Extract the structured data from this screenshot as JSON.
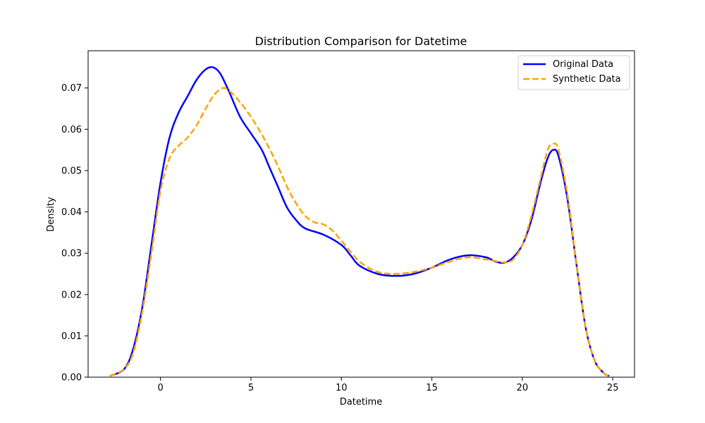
{
  "chart_data": {
    "type": "line",
    "title": "Distribution Comparison for Datetime",
    "xlabel": "Datetime",
    "ylabel": "Density",
    "xlim": [
      -4,
      26.2
    ],
    "ylim": [
      0,
      0.079
    ],
    "xticks": [
      0,
      5,
      10,
      15,
      20,
      25
    ],
    "yticks": [
      0.0,
      0.01,
      0.02,
      0.03,
      0.04,
      0.05,
      0.06,
      0.07
    ],
    "ytick_labels": [
      "0.00",
      "0.01",
      "0.02",
      "0.03",
      "0.04",
      "0.05",
      "0.06",
      "0.07"
    ],
    "grid": false,
    "legend_position": "top-right",
    "series": [
      {
        "name": "Original Data",
        "color": "#0000ff",
        "style": "solid",
        "points": [
          [
            -2.8,
            0.0003
          ],
          [
            -2.0,
            0.002
          ],
          [
            -1.5,
            0.007
          ],
          [
            -1.0,
            0.017
          ],
          [
            -0.5,
            0.032
          ],
          [
            0.0,
            0.047
          ],
          [
            0.5,
            0.058
          ],
          [
            1.0,
            0.064
          ],
          [
            1.5,
            0.068
          ],
          [
            2.0,
            0.072
          ],
          [
            2.5,
            0.0745
          ],
          [
            2.9,
            0.075
          ],
          [
            3.3,
            0.0735
          ],
          [
            3.8,
            0.069
          ],
          [
            4.4,
            0.063
          ],
          [
            5.0,
            0.059
          ],
          [
            5.6,
            0.055
          ],
          [
            6.0,
            0.051
          ],
          [
            6.5,
            0.046
          ],
          [
            7.0,
            0.041
          ],
          [
            7.5,
            0.038
          ],
          [
            8.0,
            0.036
          ],
          [
            9.0,
            0.0345
          ],
          [
            10.0,
            0.032
          ],
          [
            10.5,
            0.0295
          ],
          [
            11.0,
            0.027
          ],
          [
            12.0,
            0.025
          ],
          [
            13.0,
            0.0245
          ],
          [
            14.0,
            0.025
          ],
          [
            15.0,
            0.0265
          ],
          [
            16.0,
            0.0285
          ],
          [
            17.0,
            0.0295
          ],
          [
            18.0,
            0.029
          ],
          [
            18.5,
            0.028
          ],
          [
            19.0,
            0.0277
          ],
          [
            19.5,
            0.029
          ],
          [
            20.0,
            0.032
          ],
          [
            20.5,
            0.038
          ],
          [
            21.0,
            0.047
          ],
          [
            21.4,
            0.053
          ],
          [
            21.7,
            0.055
          ],
          [
            22.0,
            0.0535
          ],
          [
            22.5,
            0.043
          ],
          [
            23.0,
            0.027
          ],
          [
            23.5,
            0.012
          ],
          [
            24.0,
            0.004
          ],
          [
            24.5,
            0.001
          ],
          [
            24.8,
            0.0003
          ]
        ]
      },
      {
        "name": "Synthetic Data",
        "color": "#ffa500",
        "style": "dashed",
        "points": [
          [
            -2.8,
            0.0003
          ],
          [
            -2.0,
            0.002
          ],
          [
            -1.5,
            0.006
          ],
          [
            -1.0,
            0.016
          ],
          [
            -0.5,
            0.03
          ],
          [
            0.0,
            0.045
          ],
          [
            0.5,
            0.053
          ],
          [
            1.0,
            0.056
          ],
          [
            1.5,
            0.058
          ],
          [
            2.0,
            0.061
          ],
          [
            2.5,
            0.065
          ],
          [
            3.0,
            0.0685
          ],
          [
            3.5,
            0.07
          ],
          [
            4.0,
            0.0685
          ],
          [
            4.5,
            0.066
          ],
          [
            5.0,
            0.063
          ],
          [
            5.5,
            0.0595
          ],
          [
            6.0,
            0.0555
          ],
          [
            6.5,
            0.051
          ],
          [
            7.0,
            0.046
          ],
          [
            7.5,
            0.042
          ],
          [
            8.0,
            0.039
          ],
          [
            8.5,
            0.0375
          ],
          [
            9.0,
            0.037
          ],
          [
            9.5,
            0.0355
          ],
          [
            10.0,
            0.033
          ],
          [
            11.0,
            0.028
          ],
          [
            12.0,
            0.0255
          ],
          [
            13.0,
            0.025
          ],
          [
            14.0,
            0.0255
          ],
          [
            15.0,
            0.0265
          ],
          [
            16.0,
            0.028
          ],
          [
            17.0,
            0.029
          ],
          [
            18.0,
            0.0285
          ],
          [
            19.0,
            0.0278
          ],
          [
            19.5,
            0.0285
          ],
          [
            20.0,
            0.032
          ],
          [
            20.5,
            0.039
          ],
          [
            21.0,
            0.048
          ],
          [
            21.4,
            0.055
          ],
          [
            21.7,
            0.0565
          ],
          [
            22.0,
            0.055
          ],
          [
            22.5,
            0.044
          ],
          [
            23.0,
            0.027
          ],
          [
            23.5,
            0.012
          ],
          [
            24.0,
            0.004
          ],
          [
            24.5,
            0.001
          ],
          [
            24.8,
            0.0003
          ]
        ]
      }
    ]
  }
}
